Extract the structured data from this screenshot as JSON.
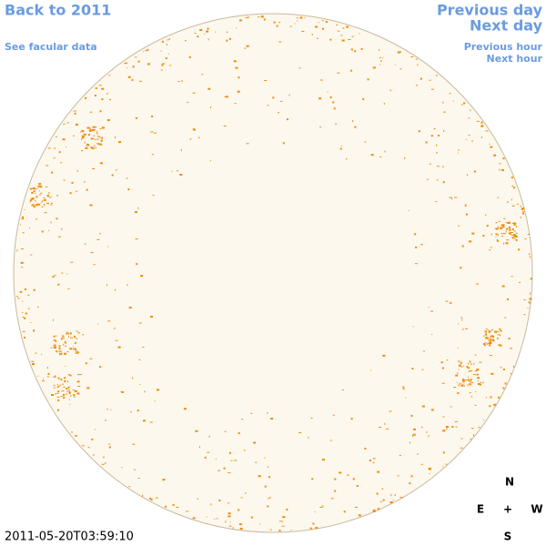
{
  "links": {
    "back": "Back to 2011",
    "facular": "See facular data",
    "previous_day": "Previous day",
    "next_day": "Next day",
    "previous_hour": "Previous hour",
    "next_hour": "Next hour"
  },
  "timestamp": "2011-05-20T03:59:10",
  "compass": {
    "north": "N",
    "east": "E",
    "center": "+",
    "west": "W",
    "south": "S"
  }
}
